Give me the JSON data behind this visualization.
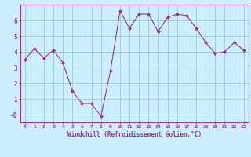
{
  "x": [
    0,
    1,
    2,
    3,
    4,
    5,
    6,
    7,
    8,
    9,
    10,
    11,
    12,
    13,
    14,
    15,
    16,
    17,
    18,
    19,
    20,
    21,
    22,
    23
  ],
  "y": [
    3.5,
    4.2,
    3.6,
    4.1,
    3.3,
    1.5,
    0.7,
    0.7,
    -0.1,
    2.8,
    6.6,
    5.5,
    6.4,
    6.4,
    5.3,
    6.2,
    6.4,
    6.3,
    5.5,
    4.6,
    3.9,
    4.0,
    4.6,
    4.1
  ],
  "line_color": "#993399",
  "marker": "D",
  "marker_size": 2.0,
  "bg_color": "#cceeff",
  "grid_color": "#99cccc",
  "axis_color": "#993399",
  "xlabel": "Windchill (Refroidissement éolien,°C)",
  "xlim": [
    -0.5,
    23.5
  ],
  "ylim": [
    -0.5,
    7.0
  ],
  "yticks": [
    0,
    1,
    2,
    3,
    4,
    5,
    6
  ],
  "ytick_labels": [
    "-0",
    "1",
    "2",
    "3",
    "4",
    "5",
    "6"
  ],
  "xtick_labels": [
    "0",
    "1",
    "2",
    "3",
    "4",
    "5",
    "6",
    "7",
    "8",
    "9",
    "10",
    "11",
    "12",
    "13",
    "14",
    "15",
    "16",
    "17",
    "18",
    "19",
    "20",
    "21",
    "22",
    "23"
  ],
  "label_color": "#993399",
  "tick_color": "#993399"
}
